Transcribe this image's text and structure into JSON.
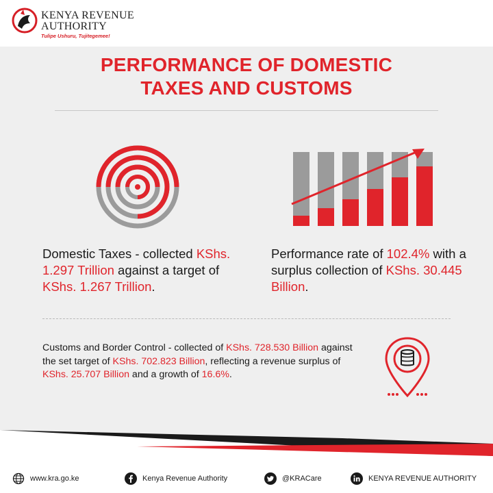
{
  "header": {
    "org_line1": "KENYA REVENUE",
    "org_line2": "AUTHORITY",
    "slogan": "Tulipe Ushuru, Tujitegemee!"
  },
  "title": {
    "line1": "PERFORMANCE OF DOMESTIC",
    "line2": "TAXES AND CUSTOMS"
  },
  "domestic": {
    "label": "Domestic Taxes",
    "t1": " - collected ",
    "collected": "KShs. 1.297 Trillion",
    "t2": " against a target of ",
    "target": "KShs. 1.267 Trillion",
    "t3": "."
  },
  "performance": {
    "t1": "Performance rate of ",
    "rate": "102.4%",
    "t2": " with a surplus collection of ",
    "surplus": "KShs. 30.445 Billion",
    "t3": "."
  },
  "customs": {
    "label": "Customs and Border Control",
    "t1": " - collected of ",
    "collected": "KShs. 728.530 Billion",
    "t2": " against the set target of ",
    "target": "KShs. 702.823 Billion",
    "t3": ", reflecting a revenue surplus of ",
    "surplus": "KShs. 25.707 Billion",
    "t4": " and a growth of ",
    "growth": "16.6%",
    "t5": "."
  },
  "footer": {
    "website": "www.kra.go.ke",
    "facebook": "Kenya Revenue Authority",
    "twitter": "@KRACare",
    "linkedin": "KENYA REVENUE AUTHORITY"
  },
  "icons": {
    "logo": "kra-lion-logo",
    "target": "target-icon",
    "bars": "growth-bars-icon",
    "pin": "coins-location-pin-icon",
    "web": "globe-icon",
    "facebook": "facebook-icon",
    "twitter": "twitter-icon",
    "linkedin": "linkedin-icon"
  },
  "colors": {
    "accent": "#e0242b",
    "gray": "#9b9b9b",
    "dark": "#1a1a1a"
  }
}
